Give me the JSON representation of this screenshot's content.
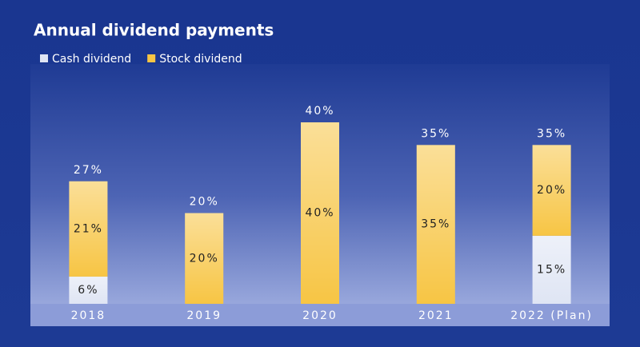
{
  "chart_data": {
    "type": "stacked_bar",
    "title": "Annual dividend payments",
    "categories": [
      "2018",
      "2019",
      "2020",
      "2021",
      "2022 (Plan)"
    ],
    "series": [
      {
        "name": "Cash dividend",
        "color": "#dfe5f4",
        "values": [
          6,
          null,
          null,
          null,
          15
        ],
        "value_labels": [
          "6%",
          null,
          null,
          null,
          "15%"
        ]
      },
      {
        "name": "Stock dividend",
        "color": "#f7c544",
        "values": [
          21,
          20,
          40,
          35,
          20
        ],
        "value_labels": [
          "21%",
          "20%",
          "40%",
          "35%",
          "20%"
        ]
      }
    ],
    "totals": [
      27,
      20,
      40,
      35,
      35
    ],
    "total_labels": [
      "27%",
      "20%",
      "40%",
      "35%",
      "35%"
    ]
  }
}
